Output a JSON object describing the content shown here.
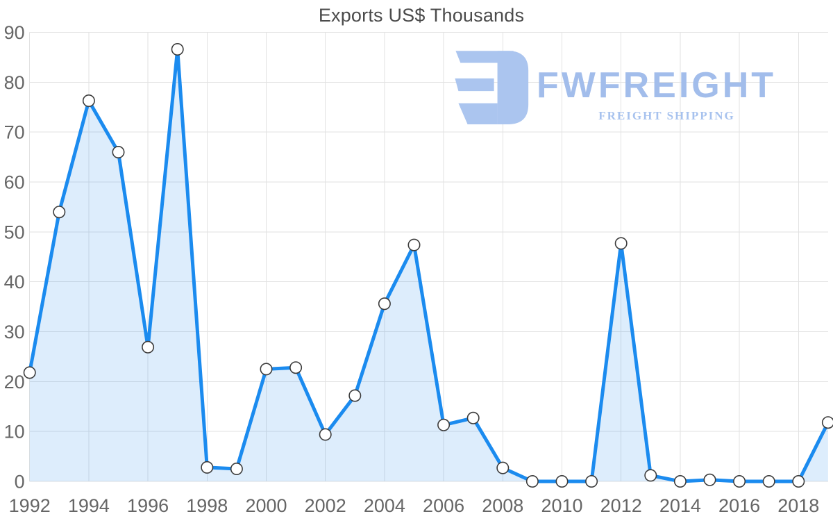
{
  "watermark": {
    "brand": "FWFREIGHT",
    "tagline": "FREIGHT SHIPPING",
    "logo_icon": "fwfreight-mark-icon",
    "color": "#a4bfec"
  },
  "chart_data": {
    "type": "area",
    "title": "Exports US$ Thousands",
    "xlabel": "",
    "ylabel": "",
    "x": [
      1992,
      1993,
      1994,
      1995,
      1996,
      1997,
      1998,
      1999,
      2000,
      2001,
      2002,
      2003,
      2004,
      2005,
      2006,
      2007,
      2008,
      2009,
      2010,
      2011,
      2012,
      2013,
      2014,
      2015,
      2016,
      2017,
      2018,
      2019
    ],
    "values": [
      21.8,
      54.0,
      76.3,
      66.0,
      26.9,
      86.6,
      2.8,
      2.5,
      22.5,
      22.8,
      9.4,
      17.2,
      35.6,
      47.4,
      11.3,
      12.7,
      2.7,
      0,
      0,
      0,
      47.7,
      1.2,
      0,
      0.3,
      0,
      0,
      0,
      11.8
    ],
    "ylim": [
      0,
      90
    ],
    "ytick_step": 10,
    "xtick_years": [
      1992,
      1994,
      1996,
      1998,
      2000,
      2002,
      2004,
      2006,
      2008,
      2010,
      2012,
      2014,
      2016,
      2018
    ],
    "grid": true,
    "legend": "none",
    "marker": "circle",
    "colors": {
      "line": "#1b8bef",
      "fill": "rgba(25,133,235,0.15)",
      "grid": "#e2e2e2",
      "tick_label": "#666666",
      "title": "#4b4b4b",
      "marker_fill": "#ffffff",
      "marker_stroke": "#3c3c3c"
    }
  }
}
